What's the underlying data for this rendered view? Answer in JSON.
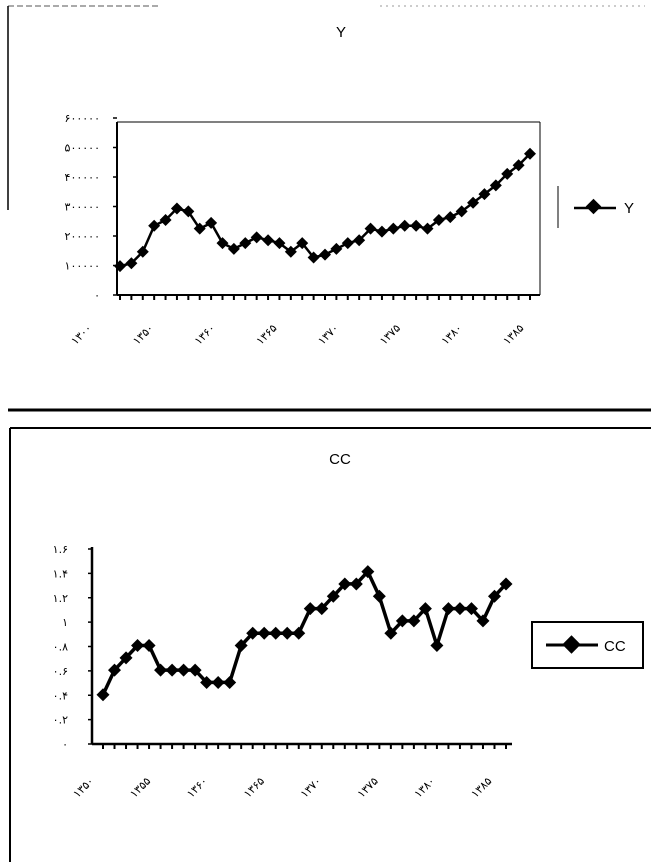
{
  "chart_data": [
    {
      "type": "line",
      "title": "Y",
      "legend": {
        "entries": [
          "Y"
        ],
        "position": "right"
      },
      "x_tick_labels": [
        "۱۳۰۰",
        "۱۳۵۰",
        "۱۳۶۰",
        "۱۳۶۵",
        "۱۳۷۰",
        "۱۳۷۵",
        "۱۳۸۰",
        "۱۳۸۵"
      ],
      "y_tick_labels": [
        "۶۰۰۰۰۰",
        "۵۰۰۰۰۰",
        "۴۰۰۰۰۰",
        "۳۰۰۰۰۰",
        "۲۰۰۰۰۰",
        "۱۰۰۰۰۰",
        "۰"
      ],
      "ylim": [
        0,
        600000
      ],
      "grid": false,
      "series": [
        {
          "name": "Y",
          "values": [
            100000,
            110000,
            150000,
            240000,
            260000,
            300000,
            290000,
            230000,
            250000,
            180000,
            160000,
            180000,
            200000,
            190000,
            180000,
            150000,
            180000,
            130000,
            140000,
            160000,
            180000,
            190000,
            230000,
            220000,
            230000,
            240000,
            240000,
            230000,
            260000,
            270000,
            290000,
            320000,
            350000,
            380000,
            420000,
            450000,
            490000
          ]
        }
      ]
    },
    {
      "type": "line",
      "title": "CC",
      "legend": {
        "entries": [
          "CC"
        ],
        "position": "right"
      },
      "x_tick_labels": [
        "۱۳۵۰",
        "۱۳۵۵",
        "۱۳۶۰",
        "۱۳۶۵",
        "۱۳۷۰",
        "۱۳۷۵",
        "۱۳۸۰",
        "۱۳۸۵"
      ],
      "y_tick_labels": [
        "۱.۶",
        "۱.۴",
        "۱.۲",
        "۱",
        "۰.۸",
        "۰.۶",
        "۰.۴",
        "۰.۲",
        "۰"
      ],
      "ylim": [
        0,
        1.6
      ],
      "grid": false,
      "series": [
        {
          "name": "CC",
          "values": [
            0.4,
            0.6,
            0.7,
            0.8,
            0.8,
            0.6,
            0.6,
            0.6,
            0.6,
            0.5,
            0.5,
            0.5,
            0.8,
            0.9,
            0.9,
            0.9,
            0.9,
            0.9,
            1.1,
            1.1,
            1.2,
            1.3,
            1.3,
            1.4,
            1.2,
            0.9,
            1.0,
            1.0,
            1.1,
            0.8,
            1.1,
            1.1,
            1.1,
            1.0,
            1.2,
            1.3
          ]
        }
      ]
    }
  ]
}
